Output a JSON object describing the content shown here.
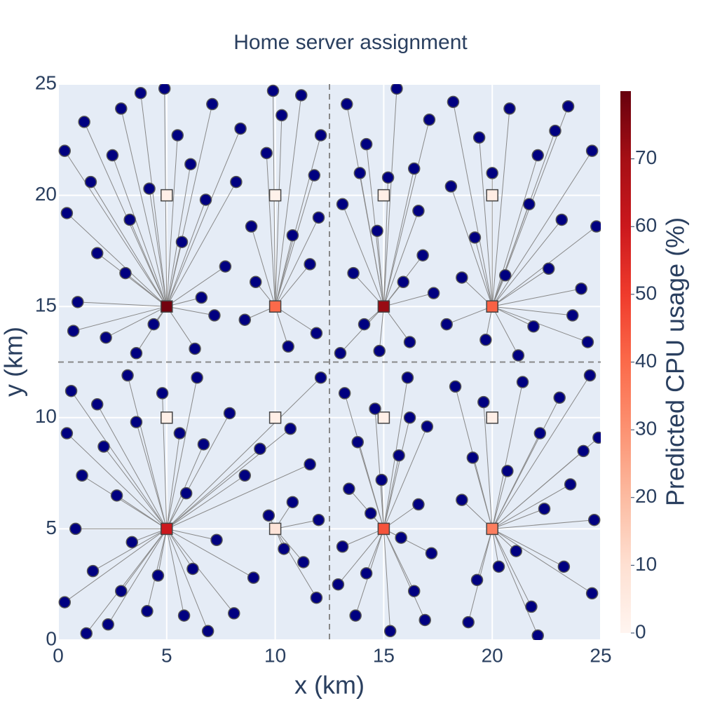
{
  "chart_data": {
    "type": "scatter",
    "title": "Home server assignment",
    "x_label": "x (km)",
    "y_label": "y (km)",
    "xlim": [
      0,
      25
    ],
    "ylim": [
      0,
      25
    ],
    "xticks": [
      0,
      5,
      10,
      15,
      20,
      25
    ],
    "yticks": [
      0,
      5,
      10,
      15,
      20,
      25
    ],
    "grid": true,
    "region_bounds": {
      "x": [
        12.5
      ],
      "y": [
        12.5
      ]
    },
    "user_color": "#000080",
    "line_color": "#888888",
    "colorbar": {
      "title": "Predicted CPU usage (%)",
      "lim": [
        0,
        80
      ],
      "ticks": [
        0,
        10,
        20,
        30,
        40,
        50,
        60,
        70
      ],
      "colorscale": [
        [
          0,
          "rgb(255,245,240)"
        ],
        [
          0.125,
          "rgb(254,224,210)"
        ],
        [
          0.25,
          "rgb(252,187,161)"
        ],
        [
          0.375,
          "rgb(252,146,114)"
        ],
        [
          0.5,
          "rgb(251,106,74)"
        ],
        [
          0.625,
          "rgb(239,59,44)"
        ],
        [
          0.75,
          "rgb(203,24,29)"
        ],
        [
          0.875,
          "rgb(165,15,21)"
        ],
        [
          1,
          "rgb(103,0,13)"
        ]
      ]
    },
    "servers": {
      "x": [
        5,
        10,
        15,
        20,
        5,
        10,
        15,
        20,
        5,
        10,
        15,
        20,
        5,
        10,
        15,
        20
      ],
      "y": [
        5,
        5,
        5,
        5,
        10,
        10,
        10,
        10,
        15,
        15,
        15,
        15,
        20,
        20,
        20,
        20
      ],
      "cpu": [
        60,
        8,
        45,
        35,
        3,
        3,
        3,
        3,
        78,
        40,
        72,
        42,
        3,
        2,
        3,
        4
      ]
    },
    "users": {
      "x": [
        1.2,
        2.5,
        3.8,
        0.4,
        1.8,
        3.1,
        0.9,
        2.2,
        4.4,
        6.3,
        7.2,
        5.7,
        6.8,
        4.2,
        5.5,
        7.1,
        8.4,
        3.3,
        1.5,
        0.3,
        6.1,
        7.7,
        2.9,
        4.9,
        8.9,
        9.6,
        10.3,
        11.2,
        11.8,
        10.8,
        11.6,
        9.1,
        11.9,
        10.6,
        12.1,
        9.9,
        8.2,
        0.7,
        3.6,
        6.6,
        12.0,
        8.6,
        13.3,
        14.2,
        15.6,
        16.4,
        13.1,
        14.7,
        16.8,
        13.6,
        15.9,
        14.1,
        16.2,
        13.0,
        17.1,
        16.6,
        15.2,
        13.9,
        17.3,
        14.8,
        18.2,
        19.4,
        20.8,
        22.1,
        23.5,
        24.6,
        21.7,
        23.2,
        24.8,
        19.2,
        22.6,
        24.1,
        18.6,
        20.6,
        21.9,
        23.7,
        19.7,
        21.2,
        18.1,
        24.4,
        22.9,
        20.0,
        17.9,
        0.6,
        1.8,
        3.2,
        0.4,
        2.1,
        3.6,
        1.1,
        2.7,
        0.8,
        3.4,
        1.6,
        0.3,
        2.3,
        4.1,
        4.6,
        5.8,
        6.9,
        6.2,
        7.3,
        5.9,
        6.7,
        7.9,
        4.8,
        5.6,
        6.4,
        8.6,
        9.3,
        10.7,
        11.6,
        12.1,
        8.1,
        9.0,
        10.4,
        11.3,
        11.9,
        10.8,
        9.7,
        2.9,
        1.3,
        12.0,
        13.2,
        14.6,
        16.1,
        13.8,
        15.7,
        17.0,
        13.4,
        14.9,
        16.6,
        13.1,
        14.2,
        13.7,
        15.3,
        16.4,
        17.2,
        15.8,
        12.9,
        16.9,
        14.4,
        16.2,
        18.3,
        19.6,
        21.4,
        23.1,
        24.5,
        22.2,
        24.2,
        19.1,
        20.7,
        23.6,
        18.6,
        22.4,
        24.7,
        21.1,
        23.3,
        24.6,
        19.3,
        21.8,
        22.1,
        18.9,
        20.3,
        24.9
      ],
      "y": [
        23.3,
        21.8,
        24.6,
        19.2,
        17.4,
        16.5,
        15.2,
        13.6,
        14.2,
        13.1,
        14.6,
        17.9,
        19.8,
        20.3,
        22.7,
        24.1,
        23.0,
        18.9,
        20.6,
        22.0,
        21.4,
        16.8,
        23.9,
        24.8,
        18.6,
        21.9,
        23.6,
        24.5,
        20.9,
        18.2,
        16.9,
        16.1,
        13.8,
        13.2,
        22.7,
        24.7,
        20.6,
        13.9,
        12.9,
        15.4,
        19.0,
        14.4,
        24.1,
        22.3,
        24.8,
        21.2,
        19.6,
        18.4,
        17.3,
        16.5,
        16.1,
        14.2,
        13.4,
        12.9,
        23.4,
        19.3,
        20.8,
        21.0,
        15.6,
        13.0,
        24.2,
        22.6,
        23.9,
        21.8,
        24.0,
        22.0,
        19.6,
        18.9,
        18.6,
        18.1,
        16.7,
        15.8,
        16.3,
        16.4,
        14.1,
        14.6,
        13.5,
        12.8,
        20.4,
        13.4,
        22.9,
        21.0,
        14.2,
        11.2,
        10.6,
        11.9,
        9.3,
        8.7,
        9.8,
        7.4,
        6.5,
        5.0,
        4.4,
        3.1,
        1.7,
        0.7,
        1.3,
        2.9,
        1.1,
        0.4,
        3.2,
        4.5,
        6.6,
        8.8,
        10.2,
        11.1,
        9.3,
        11.8,
        7.4,
        8.6,
        9.5,
        7.9,
        11.8,
        1.2,
        2.8,
        4.1,
        3.5,
        1.9,
        6.2,
        5.6,
        2.2,
        0.3,
        5.4,
        11.1,
        10.4,
        11.8,
        8.9,
        8.3,
        9.6,
        6.8,
        7.2,
        6.1,
        4.2,
        3.0,
        1.1,
        0.4,
        2.2,
        3.9,
        4.6,
        2.5,
        0.9,
        5.7,
        10.0,
        11.4,
        10.7,
        11.6,
        10.9,
        11.9,
        9.3,
        8.5,
        8.2,
        7.6,
        7.0,
        6.3,
        5.9,
        5.4,
        4.0,
        3.3,
        2.1,
        2.7,
        1.5,
        0.2,
        0.8,
        3.3,
        9.1
      ],
      "server": [
        8,
        8,
        8,
        8,
        8,
        8,
        8,
        8,
        8,
        8,
        8,
        8,
        8,
        8,
        8,
        8,
        8,
        8,
        8,
        8,
        8,
        8,
        8,
        8,
        9,
        9,
        9,
        9,
        9,
        9,
        9,
        9,
        9,
        9,
        9,
        9,
        8,
        8,
        8,
        8,
        9,
        9,
        10,
        10,
        10,
        10,
        10,
        10,
        10,
        10,
        10,
        10,
        10,
        10,
        10,
        10,
        10,
        10,
        10,
        10,
        11,
        11,
        11,
        11,
        11,
        11,
        11,
        11,
        11,
        11,
        11,
        11,
        11,
        11,
        11,
        11,
        11,
        11,
        11,
        11,
        11,
        11,
        11,
        0,
        0,
        0,
        0,
        0,
        0,
        0,
        0,
        0,
        0,
        0,
        0,
        0,
        0,
        0,
        0,
        0,
        0,
        0,
        0,
        0,
        0,
        0,
        0,
        0,
        0,
        0,
        0,
        0,
        0,
        0,
        0,
        1,
        1,
        1,
        1,
        1,
        0,
        0,
        1,
        2,
        2,
        2,
        2,
        2,
        2,
        2,
        2,
        2,
        2,
        2,
        2,
        2,
        2,
        2,
        2,
        2,
        2,
        2,
        2,
        3,
        3,
        3,
        3,
        3,
        3,
        3,
        3,
        3,
        3,
        3,
        3,
        3,
        3,
        3,
        3,
        3,
        3,
        3,
        3,
        3,
        3
      ]
    }
  }
}
